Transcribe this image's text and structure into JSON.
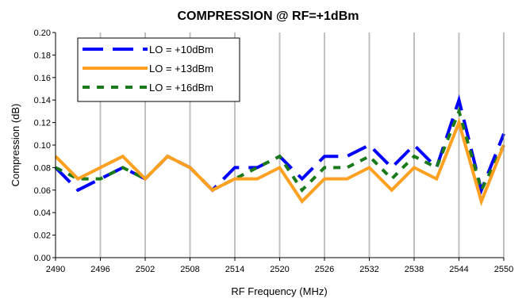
{
  "chart_data": {
    "type": "line",
    "title": "COMPRESSION @ RF=+1dBm",
    "xlabel": "RF Frequency (MHz)",
    "ylabel": "Compression (dB)",
    "xlim": [
      2490,
      2550
    ],
    "ylim": [
      0,
      0.2
    ],
    "x_ticks": [
      "2490",
      "2496",
      "2502",
      "2508",
      "2514",
      "2520",
      "2526",
      "2532",
      "2538",
      "2544",
      "2550"
    ],
    "y_ticks": [
      "0.00",
      "0.02",
      "0.04",
      "0.06",
      "0.08",
      "0.10",
      "0.12",
      "0.14",
      "0.16",
      "0.18",
      "0.20"
    ],
    "grid": "vertical",
    "legend_position": "top-left",
    "x": [
      2490,
      2493,
      2496,
      2499,
      2502,
      2505,
      2508,
      2511,
      2514,
      2517,
      2520,
      2523,
      2526,
      2529,
      2532,
      2535,
      2538,
      2541,
      2544,
      2547,
      2550
    ],
    "series": [
      {
        "name": "LO = +10dBm",
        "color": "#0000ff",
        "dash": "long-dash",
        "values": [
          0.08,
          0.06,
          0.07,
          0.08,
          0.07,
          0.09,
          0.08,
          0.06,
          0.08,
          0.08,
          0.09,
          0.07,
          0.09,
          0.09,
          0.1,
          0.08,
          0.1,
          0.08,
          0.14,
          0.06,
          0.11
        ]
      },
      {
        "name": "LO = +13dBm",
        "color": "#ffa020",
        "dash": "solid",
        "values": [
          0.09,
          0.07,
          0.08,
          0.09,
          0.07,
          0.09,
          0.08,
          0.06,
          0.07,
          0.07,
          0.08,
          0.05,
          0.07,
          0.07,
          0.08,
          0.06,
          0.08,
          0.07,
          0.12,
          0.05,
          0.1
        ]
      },
      {
        "name": "LO = +16dBm",
        "color": "#1a7a1a",
        "dash": "short-dash",
        "values": [
          0.08,
          0.07,
          0.07,
          0.08,
          0.07,
          0.09,
          0.08,
          0.06,
          0.07,
          0.08,
          0.09,
          0.06,
          0.08,
          0.08,
          0.09,
          0.07,
          0.09,
          0.08,
          0.13,
          0.06,
          0.1
        ]
      }
    ]
  }
}
